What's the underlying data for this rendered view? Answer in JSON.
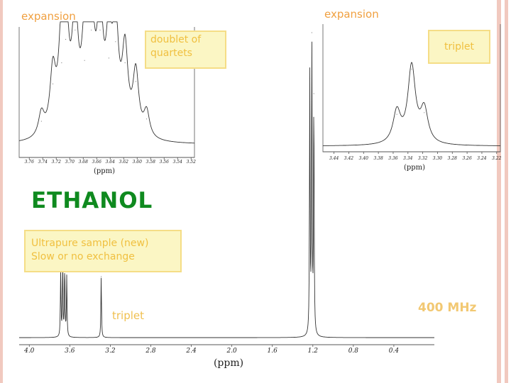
{
  "header": {
    "expansion_left": "expansion",
    "expansion_right": "expansion"
  },
  "boxes": {
    "doublet_of_quartets": [
      "doublet of",
      "quartets"
    ],
    "triplet_top": "triplet",
    "sample": [
      "Ultrapure sample (new)",
      "Slow or no exchange"
    ]
  },
  "title": "ETHANOL",
  "triplet_label": "triplet",
  "frequency": "400 MHz",
  "chart_data": [
    {
      "type": "line",
      "name": "main-spectrum",
      "xlabel": "(ppm)",
      "x_ticks": [
        "4.0",
        "3.6",
        "3.2",
        "2.8",
        "2.4",
        "2.0",
        "1.6",
        "1.2",
        "0.8",
        "0.4"
      ],
      "xlim": [
        4.1,
        0.0
      ],
      "peaks": [
        {
          "x": 3.69,
          "y": 0.22
        },
        {
          "x": 3.67,
          "y": 0.24
        },
        {
          "x": 3.65,
          "y": 0.23
        },
        {
          "x": 3.63,
          "y": 0.2
        },
        {
          "x": 3.29,
          "y": 0.2
        },
        {
          "x": 1.23,
          "y": 0.85
        },
        {
          "x": 1.21,
          "y": 1.0
        },
        {
          "x": 1.19,
          "y": 0.8
        }
      ]
    },
    {
      "type": "line",
      "name": "expansion-quartets",
      "xlabel": "(ppm)",
      "x_ticks": [
        "3.76",
        "3.74",
        "3.72",
        "3.70",
        "3.68",
        "3.66",
        "3.64",
        "3.62",
        "3.60",
        "3.58",
        "3.56",
        "3.54",
        "3.52"
      ],
      "xlim": [
        3.775,
        3.515
      ],
      "peaks": [
        {
          "x": 3.742,
          "y": 0.2
        },
        {
          "x": 3.725,
          "y": 0.52
        },
        {
          "x": 3.712,
          "y": 0.7
        },
        {
          "x": 3.706,
          "y": 0.9
        },
        {
          "x": 3.692,
          "y": 0.98
        },
        {
          "x": 3.678,
          "y": 0.72
        },
        {
          "x": 3.668,
          "y": 0.98
        },
        {
          "x": 3.655,
          "y": 0.98
        },
        {
          "x": 3.642,
          "y": 0.74
        },
        {
          "x": 3.632,
          "y": 0.88
        },
        {
          "x": 3.618,
          "y": 0.7
        },
        {
          "x": 3.602,
          "y": 0.54
        },
        {
          "x": 3.586,
          "y": 0.22
        }
      ]
    },
    {
      "type": "line",
      "name": "expansion-triplet",
      "xlabel": "(ppm)",
      "x_ticks": [
        "3.44",
        "3.42",
        "3.40",
        "3.38",
        "3.36",
        "3.34",
        "3.32",
        "3.30",
        "3.28",
        "3.26",
        "3.24",
        "3.22"
      ],
      "xlim": [
        3.455,
        3.215
      ],
      "peaks": [
        {
          "x": 3.355,
          "y": 0.38
        },
        {
          "x": 3.335,
          "y": 0.92
        },
        {
          "x": 3.318,
          "y": 0.4
        }
      ]
    }
  ]
}
